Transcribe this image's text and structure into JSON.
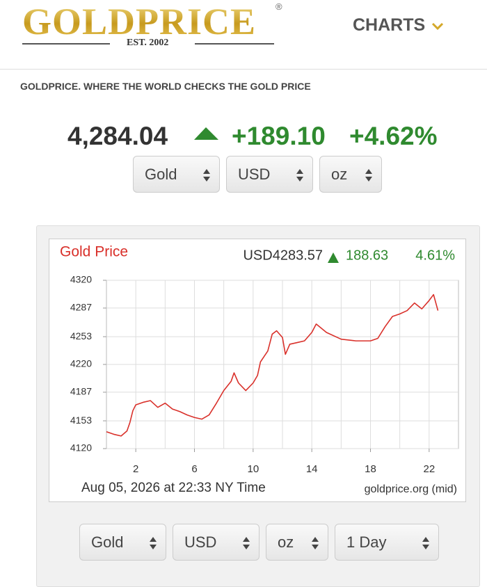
{
  "header": {
    "logo": "GOLDPRICE",
    "logo_mark": "®",
    "established": "EST. 2002",
    "nav": [
      "CHARTS"
    ]
  },
  "tagline": "GOLDPRICE. WHERE THE WORLD CHECKS THE GOLD PRICE",
  "price": {
    "value": "4,284.04",
    "change": "+189.10",
    "change_pct": "+4.62%"
  },
  "selectors": [
    "Gold",
    "USD",
    "oz"
  ],
  "chart_data": {
    "type": "line",
    "title": "Gold Price",
    "quote": {
      "price": "USD4283.57",
      "change": "188.63",
      "change_pct": "4.61%"
    },
    "unit_label": "oz",
    "footer_date": "Aug 05, 2026 at 22:33 NY Time",
    "source": "goldprice.org (mid)",
    "color": "#d9302a",
    "x": [
      0,
      0.5,
      1,
      1.4,
      1.6,
      1.8,
      2,
      2.5,
      3,
      3.5,
      4,
      4.5,
      5,
      5.5,
      6,
      6.5,
      7,
      7.5,
      8,
      8.5,
      8.7,
      9,
      9.5,
      10,
      10.3,
      10.5,
      11,
      11.3,
      11.6,
      12,
      12.2,
      12.5,
      13,
      13.5,
      14,
      14.3,
      15,
      16,
      17,
      18,
      18.5,
      19,
      19.5,
      20,
      20.5,
      21,
      21.5,
      22,
      22.3,
      22.6
    ],
    "values": [
      4140,
      4137,
      4135,
      4141,
      4151,
      4165,
      4172,
      4175,
      4177,
      4169,
      4174,
      4167,
      4164,
      4160,
      4157,
      4155,
      4160,
      4174,
      4189,
      4200,
      4210,
      4198,
      4189,
      4198,
      4207,
      4223,
      4236,
      4256,
      4260,
      4252,
      4232,
      4244,
      4246,
      4248,
      4258,
      4268,
      4258,
      4250,
      4248,
      4248,
      4251,
      4265,
      4277,
      4280,
      4284,
      4293,
      4286,
      4296,
      4303,
      4284
    ],
    "xlim": [
      0,
      24
    ],
    "xticks": [
      2,
      6,
      10,
      14,
      18,
      22
    ],
    "ylim": [
      4120,
      4320
    ],
    "yticks": [
      4120,
      4153,
      4187,
      4220,
      4253,
      4287,
      4320
    ],
    "grid": true
  },
  "chart_selectors": [
    "Gold",
    "USD",
    "oz",
    "1 Day"
  ]
}
